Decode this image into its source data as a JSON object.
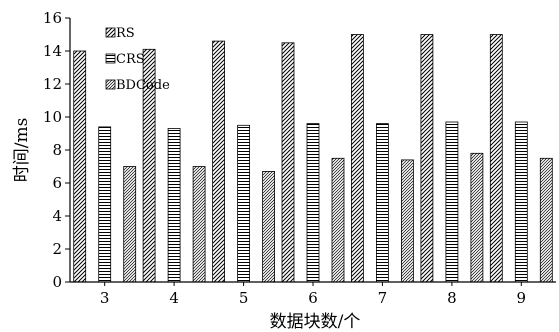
{
  "chart_data": {
    "type": "bar",
    "title": "",
    "xlabel": "数据块数/个",
    "ylabel": "时间/ms",
    "ylim": [
      0,
      16
    ],
    "yticks": [
      0,
      2,
      4,
      6,
      8,
      10,
      12,
      14,
      16
    ],
    "grid": false,
    "legend_position": "top-left",
    "categories": [
      "3",
      "4",
      "5",
      "6",
      "7",
      "8",
      "9"
    ],
    "series": [
      {
        "name": "RS",
        "pattern": "diagonal-hatch",
        "values": [
          14.0,
          14.1,
          14.6,
          14.5,
          15.0,
          15.0,
          15.0
        ]
      },
      {
        "name": "CRS",
        "pattern": "horizontal-hatch",
        "values": [
          9.4,
          9.3,
          9.5,
          9.6,
          9.6,
          9.7,
          9.7
        ]
      },
      {
        "name": "BDCode",
        "pattern": "fine-diagonal-hatch",
        "values": [
          7.0,
          7.0,
          6.7,
          7.5,
          7.4,
          7.8,
          7.5
        ]
      }
    ]
  }
}
